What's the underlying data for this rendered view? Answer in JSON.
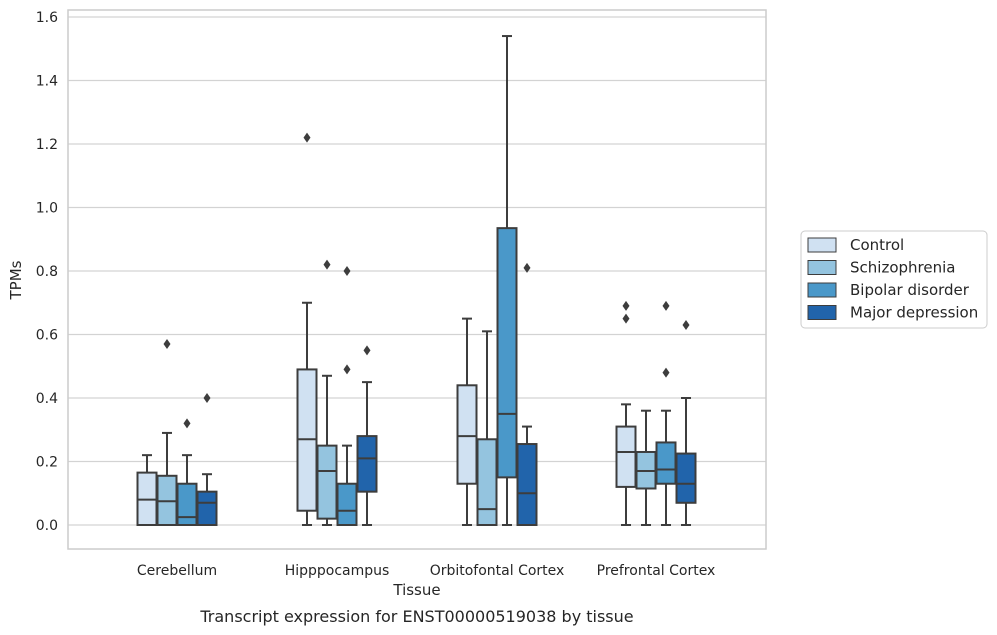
{
  "caption": "Transcript expression for ENST00000519038 by tissue",
  "chart_data": {
    "type": "box",
    "xlabel": "Tissue",
    "ylabel": "TPMs",
    "ylim": [
      -0.075,
      1.62
    ],
    "yticks": [
      "0.0",
      "0.2",
      "0.4",
      "0.6",
      "0.8",
      "1.0",
      "1.2",
      "1.4",
      "1.6"
    ],
    "ytick_values": [
      0.0,
      0.2,
      0.4,
      0.6,
      0.8,
      1.0,
      1.2,
      1.4,
      1.6
    ],
    "grid": true,
    "legend_position": "right",
    "categories": [
      "Cerebellum",
      "Hipppocampus",
      "Orbitofontal Cortex",
      "Prefrontal Cortex"
    ],
    "series": [
      {
        "name": "Control",
        "color": "#d0e1f2",
        "boxes": [
          {
            "whislo": 0.0,
            "q1": 0.0,
            "med": 0.08,
            "q3": 0.165,
            "whishi": 0.22,
            "fliers": []
          },
          {
            "whislo": 0.0,
            "q1": 0.045,
            "med": 0.27,
            "q3": 0.49,
            "whishi": 0.7,
            "fliers": [
              1.22
            ]
          },
          {
            "whislo": 0.0,
            "q1": 0.13,
            "med": 0.28,
            "q3": 0.44,
            "whishi": 0.65,
            "fliers": []
          },
          {
            "whislo": 0.0,
            "q1": 0.12,
            "med": 0.23,
            "q3": 0.31,
            "whishi": 0.38,
            "fliers": [
              0.65,
              0.69
            ]
          }
        ]
      },
      {
        "name": "Schizophrenia",
        "color": "#94c4df",
        "boxes": [
          {
            "whislo": 0.0,
            "q1": 0.0,
            "med": 0.075,
            "q3": 0.155,
            "whishi": 0.29,
            "fliers": [
              0.57
            ]
          },
          {
            "whislo": 0.0,
            "q1": 0.02,
            "med": 0.17,
            "q3": 0.25,
            "whishi": 0.47,
            "fliers": [
              0.82
            ]
          },
          {
            "whislo": 0.0,
            "q1": 0.0,
            "med": 0.05,
            "q3": 0.27,
            "whishi": 0.61,
            "fliers": []
          },
          {
            "whislo": 0.0,
            "q1": 0.115,
            "med": 0.17,
            "q3": 0.23,
            "whishi": 0.36,
            "fliers": []
          }
        ]
      },
      {
        "name": "Bipolar disorder",
        "color": "#4a98c9",
        "boxes": [
          {
            "whislo": 0.0,
            "q1": 0.0,
            "med": 0.025,
            "q3": 0.13,
            "whishi": 0.22,
            "fliers": [
              0.32
            ]
          },
          {
            "whislo": 0.0,
            "q1": 0.0,
            "med": 0.045,
            "q3": 0.13,
            "whishi": 0.25,
            "fliers": [
              0.49,
              0.8
            ]
          },
          {
            "whislo": 0.0,
            "q1": 0.15,
            "med": 0.35,
            "q3": 0.935,
            "whishi": 1.54,
            "fliers": []
          },
          {
            "whislo": 0.0,
            "q1": 0.13,
            "med": 0.175,
            "q3": 0.26,
            "whishi": 0.36,
            "fliers": [
              0.48,
              0.69
            ]
          }
        ]
      },
      {
        "name": "Major depression",
        "color": "#2164ab",
        "boxes": [
          {
            "whislo": 0.0,
            "q1": 0.0,
            "med": 0.07,
            "q3": 0.105,
            "whishi": 0.16,
            "fliers": [
              0.4
            ]
          },
          {
            "whislo": 0.0,
            "q1": 0.105,
            "med": 0.21,
            "q3": 0.28,
            "whishi": 0.45,
            "fliers": [
              0.55
            ]
          },
          {
            "whislo": 0.0,
            "q1": 0.0,
            "med": 0.1,
            "q3": 0.255,
            "whishi": 0.31,
            "fliers": [
              0.81
            ]
          },
          {
            "whislo": 0.0,
            "q1": 0.07,
            "med": 0.13,
            "q3": 0.225,
            "whishi": 0.4,
            "fliers": [
              0.63
            ]
          }
        ]
      }
    ]
  }
}
